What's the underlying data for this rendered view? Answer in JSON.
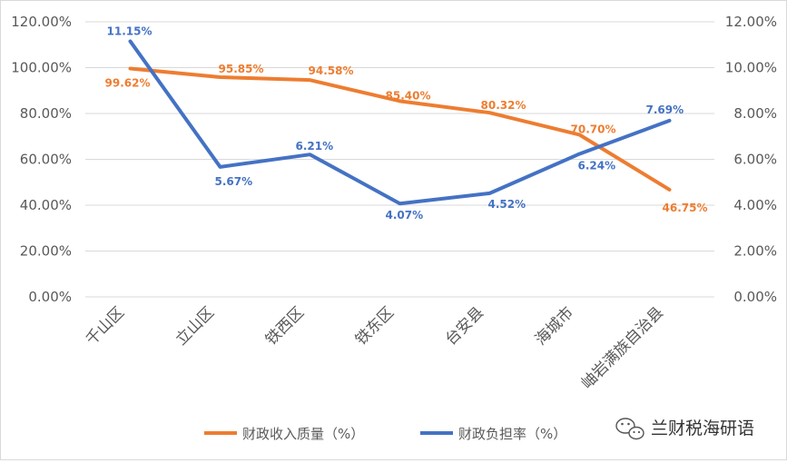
{
  "chart_data": {
    "type": "line",
    "categories": [
      "千山区",
      "立山区",
      "铁西区",
      "铁东区",
      "台安县",
      "海城市",
      "岫岩满族自治县"
    ],
    "series": [
      {
        "name": "财政收入质量（%）",
        "axis": "left",
        "color": "#ed7d31",
        "values": [
          99.62,
          95.85,
          94.58,
          85.4,
          80.32,
          70.7,
          46.75
        ],
        "labels": [
          "99.62%",
          "95.85%",
          "94.58%",
          "85.40%",
          "80.32%",
          "70.70%",
          "46.75%"
        ]
      },
      {
        "name": "财政负担率（%）",
        "axis": "right",
        "color": "#4472c4",
        "values": [
          11.15,
          5.67,
          6.21,
          4.07,
          4.52,
          6.24,
          7.69
        ],
        "labels": [
          "11.15%",
          "5.67%",
          "6.21%",
          "4.07%",
          "4.52%",
          "6.24%",
          "7.69%"
        ]
      }
    ],
    "y_left": {
      "ylim": [
        0,
        120
      ],
      "ticks": [
        0,
        20,
        40,
        60,
        80,
        100,
        120
      ],
      "tick_labels": [
        "0.00%",
        "20.00%",
        "40.00%",
        "60.00%",
        "80.00%",
        "100.00%",
        "120.00%"
      ]
    },
    "y_right": {
      "ylim": [
        0,
        12
      ],
      "ticks": [
        0,
        2,
        4,
        6,
        8,
        10,
        12
      ],
      "tick_labels": [
        "0.00%",
        "2.00%",
        "4.00%",
        "6.00%",
        "8.00%",
        "10.00%",
        "12.00%"
      ]
    },
    "grid": true,
    "legend_position": "bottom"
  },
  "watermark": {
    "text": "兰财税海研语",
    "icon": "wechat-icon"
  }
}
